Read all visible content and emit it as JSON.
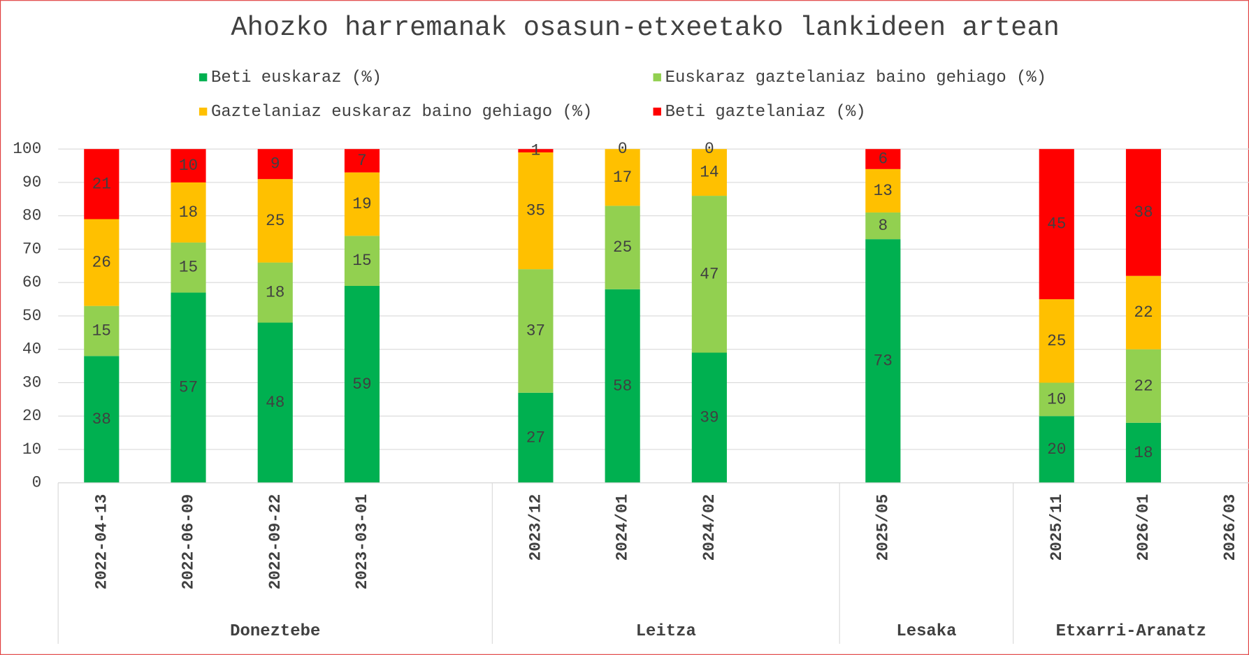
{
  "chart_data": {
    "type": "stacked_bar",
    "title": "Ahozko harremanak osasun-etxeetako lankideen artean",
    "categories": [
      "2022-04-13",
      "2022-06-09",
      "2022-09-22",
      "2023-03-01",
      null,
      "2023/12",
      "2024/01",
      "2024/02",
      null,
      "2025/05",
      null,
      "2025/11",
      "2026/01",
      "2026/03"
    ],
    "groups": [
      {
        "label": "Doneztebe",
        "count": 5
      },
      {
        "label": "Leitza",
        "count": 4
      },
      {
        "label": "Lesaka",
        "count": 2
      },
      {
        "label": "Etxarri-Aranatz",
        "count": 3
      }
    ],
    "series": [
      {
        "name": "Beti euskaraz (%)",
        "color": "#00b050",
        "values": [
          38,
          57,
          48,
          59,
          null,
          27,
          58,
          39,
          null,
          73,
          null,
          20,
          18,
          null
        ]
      },
      {
        "name": "Euskaraz gaztelaniaz baino gehiago (%)",
        "color": "#92d050",
        "values": [
          15,
          15,
          18,
          15,
          null,
          37,
          25,
          47,
          null,
          8,
          null,
          10,
          22,
          null
        ]
      },
      {
        "name": "Gaztelaniaz euskaraz baino gehiago (%)",
        "color": "#ffc000",
        "values": [
          26,
          18,
          25,
          19,
          null,
          35,
          17,
          14,
          null,
          13,
          null,
          25,
          22,
          null
        ]
      },
      {
        "name": "Beti gaztelaniaz (%)",
        "color": "#ff0000",
        "values": [
          21,
          10,
          9,
          7,
          null,
          1,
          0,
          0,
          null,
          6,
          null,
          45,
          38,
          null
        ]
      }
    ],
    "ylim": [
      0,
      100
    ],
    "yticks": [
      0,
      10,
      20,
      30,
      40,
      50,
      60,
      70,
      80,
      90,
      100
    ],
    "grid": true,
    "legend": "top"
  }
}
